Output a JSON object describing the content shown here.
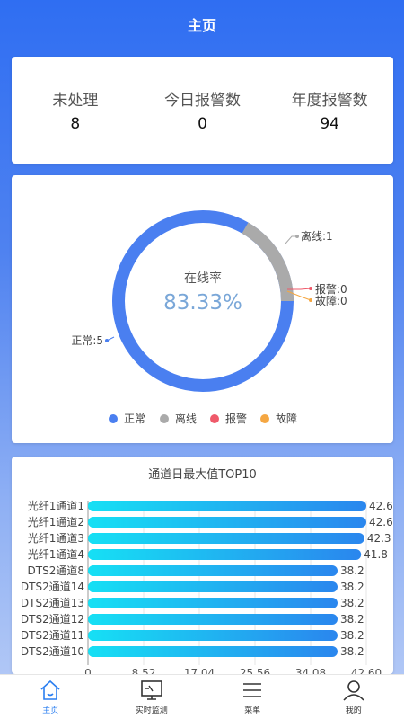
{
  "header": {
    "title": "主页"
  },
  "stats": [
    {
      "label": "未处理",
      "value": "8"
    },
    {
      "label": "今日报警数",
      "value": "0"
    },
    {
      "label": "年度报警数",
      "value": "94"
    }
  ],
  "donut": {
    "center_label": "在线率",
    "center_value": "83.33%",
    "slice_labels": [
      "正常:5",
      "离线:1",
      "报警:0",
      "故障:0"
    ],
    "legend": [
      "正常",
      "离线",
      "报警",
      "故障"
    ],
    "colors": {
      "normal": "#4a7ff0",
      "offline": "#aaaaaa",
      "alarm": "#ef5a6a",
      "fault": "#f5a742",
      "center_value": "#7aa7d8"
    }
  },
  "chart_data": [
    {
      "type": "pie",
      "categories": [
        "正常",
        "离线",
        "报警",
        "故障"
      ],
      "values": [
        5,
        1,
        0,
        0
      ]
    },
    {
      "type": "bar",
      "title": "通道日最大值TOP10",
      "categories": [
        "光纤1通道1",
        "光纤1通道2",
        "光纤1通道3",
        "光纤1通道4",
        "DTS2通道8",
        "DTS2通道14",
        "DTS2通道13",
        "DTS2通道12",
        "DTS2通道11",
        "DTS2通道10"
      ],
      "values": [
        42.6,
        42.6,
        42.3,
        41.8,
        38.2,
        38.2,
        38.2,
        38.2,
        38.2,
        38.2
      ],
      "value_labels": [
        "42.6",
        "42.6",
        "42.3",
        "41.8",
        "38.2",
        "38.2",
        "38.2",
        "38.2",
        "38.2",
        "38.2"
      ],
      "xlim": [
        0,
        42.6
      ],
      "xticks": [
        "0",
        "8.52",
        "17.04",
        "25.56",
        "34.08",
        "42.60"
      ],
      "orientation": "horizontal",
      "grid": true
    }
  ],
  "tabbar": {
    "tabs": [
      {
        "label": "主页",
        "icon": "home-icon",
        "active": true
      },
      {
        "label": "实时监测",
        "icon": "monitor-icon",
        "active": false
      },
      {
        "label": "菜单",
        "icon": "menu-icon",
        "active": false
      },
      {
        "label": "我的",
        "icon": "user-icon",
        "active": false
      }
    ],
    "active_color": "#2a7ef0"
  }
}
